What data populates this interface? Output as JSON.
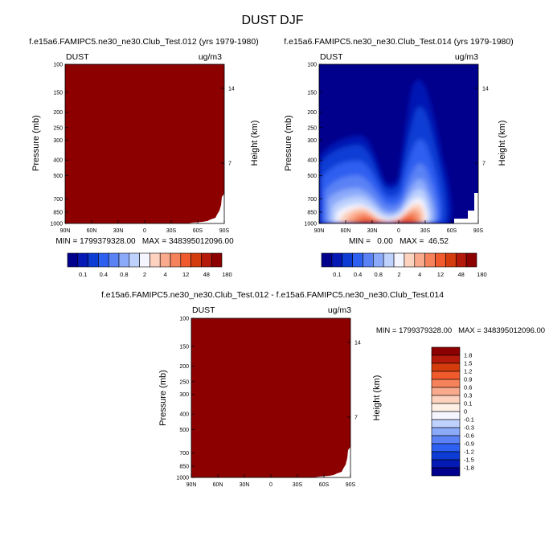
{
  "title": "DUST DJF",
  "chart_data": [
    {
      "type": "heatmap",
      "id": "p1",
      "title": "f.e15a6.FAMIPC5.ne30_ne30.Club_Test.012 (yrs 1979-1980)",
      "left_label": "DUST",
      "right_label": "ug/m3",
      "ylabel": "Pressure (mb)",
      "ylabel_right": "Height (km)",
      "x_ticks": [
        "90N",
        "60N",
        "30N",
        "0",
        "30S",
        "60S",
        "90S"
      ],
      "y_ticks": [
        "100",
        "150",
        "200",
        "250",
        "300",
        "400",
        "500",
        "700",
        "850",
        "1000"
      ],
      "y_ticks_right": [
        "14",
        "7"
      ],
      "ylim": [
        1000,
        100
      ],
      "stats": "MIN = 1799379328.00   MAX = 348395012096.00",
      "fill": "#8c0000",
      "field": "saturated"
    },
    {
      "type": "heatmap",
      "id": "p2",
      "title": "f.e15a6.FAMIPC5.ne30_ne30.Club_Test.014 (yrs 1979-1980)",
      "left_label": "DUST",
      "right_label": "ug/m3",
      "ylabel": "Pressure (mb)",
      "ylabel_right": "Height (km)",
      "x_ticks": [
        "90N",
        "60N",
        "30N",
        "0",
        "30S",
        "60S",
        "90S"
      ],
      "y_ticks": [
        "100",
        "150",
        "200",
        "250",
        "300",
        "400",
        "500",
        "700",
        "850",
        "1000"
      ],
      "y_ticks_right": [
        "14",
        "7"
      ],
      "ylim": [
        1000,
        100
      ],
      "stats": "MIN =   0.00   MAX =  46.52",
      "min": 0.0,
      "max": 46.52,
      "field": "contours"
    },
    {
      "type": "heatmap",
      "id": "p3",
      "title": "f.e15a6.FAMIPC5.ne30_ne30.Club_Test.012 - f.e15a6.FAMIPC5.ne30_ne30.Club_Test.014",
      "left_label": "DUST",
      "right_label": "ug/m3",
      "ylabel": "Pressure (mb)",
      "ylabel_right": "Height (km)",
      "x_ticks": [
        "90N",
        "60N",
        "30N",
        "0",
        "30S",
        "60S",
        "90S"
      ],
      "y_ticks": [
        "100",
        "150",
        "200",
        "250",
        "300",
        "400",
        "500",
        "700",
        "850",
        "1000"
      ],
      "y_ticks_right": [
        "14",
        "7"
      ],
      "ylim": [
        1000,
        100
      ],
      "stats": "MIN = 1799379328.00   MAX = 348395012096.00",
      "fill": "#8c0000",
      "field": "saturated"
    }
  ],
  "colorbar_abs": {
    "labels": [
      "0.1",
      "0.4",
      "0.8",
      "2",
      "4",
      "12",
      "48",
      "180"
    ],
    "colors": [
      "#00008c",
      "#0519b4",
      "#0d3cd4",
      "#2d5ff0",
      "#5a82f5",
      "#8caafa",
      "#bed2fd",
      "#f5f5ff",
      "#fdd2be",
      "#faaa8c",
      "#f5825a",
      "#f05a2d",
      "#d43c0d",
      "#b4190a",
      "#8c0000"
    ]
  },
  "colorbar_diff": {
    "labels": [
      "1.8",
      "1.5",
      "1.2",
      "0.9",
      "0.6",
      "0.3",
      "0.1",
      "0",
      "-0.1",
      "-0.3",
      "-0.6",
      "-0.9",
      "-1.2",
      "-1.5",
      "-1.8"
    ],
    "colors": [
      "#8c0000",
      "#b4190a",
      "#d43c0d",
      "#f05a2d",
      "#f5825a",
      "#faaa8c",
      "#fdd2be",
      "#fff0e6",
      "#f5f5ff",
      "#bed2fd",
      "#8caafa",
      "#5a82f5",
      "#2d5ff0",
      "#0d3cd4",
      "#0519b4",
      "#00008c"
    ]
  }
}
